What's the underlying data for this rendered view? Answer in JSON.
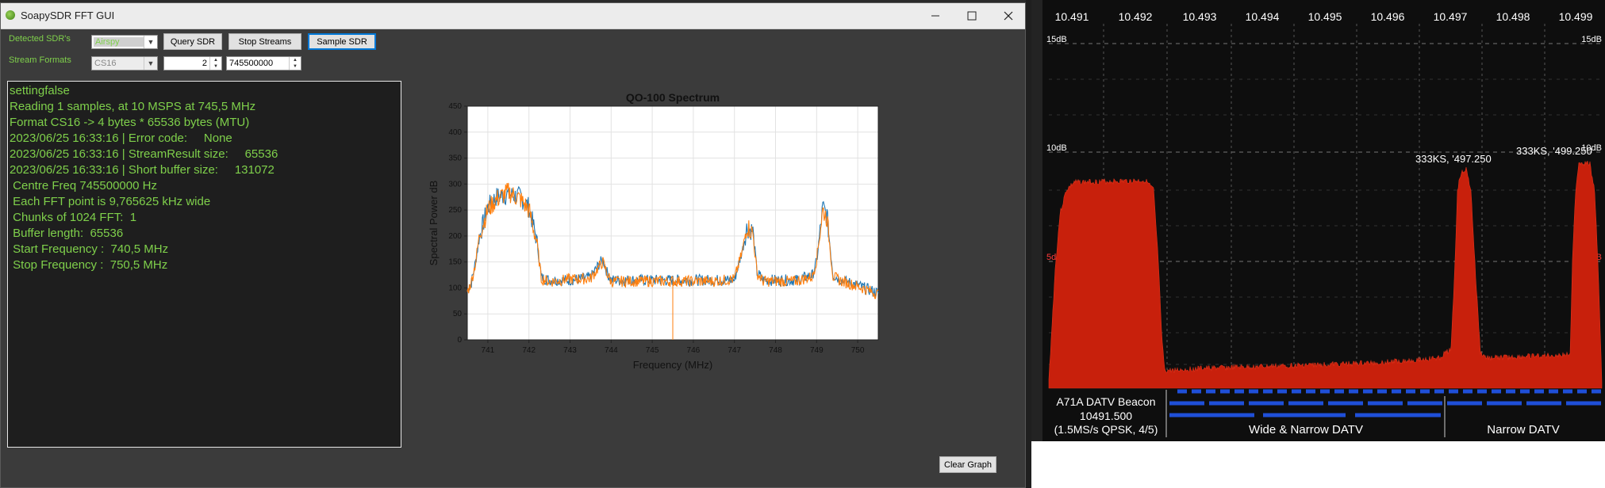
{
  "app": {
    "title": "SoapySDR FFT GUI",
    "minimize_icon": "minimize-icon",
    "maximize_icon": "maximize-icon",
    "close_icon": "close-icon"
  },
  "controls": {
    "detected_label": "Detected SDR's",
    "detected_value": "Airspy",
    "query_label": "Query SDR",
    "stop_label": "Stop Streams",
    "sample_label": "Sample SDR",
    "formats_label": "Stream Formats",
    "format_value": "CS16",
    "spin1_value": "2",
    "freq_value": "745500000"
  },
  "console": {
    "lines": [
      "settingfalse",
      "Reading 1 samples, at 10 MSPS at 745,5 MHz",
      "Format CS16 -> 4 bytes * 65536 bytes (MTU)",
      "2023/06/25 16:33:16 | Error code:     None",
      "2023/06/25 16:33:16 | StreamResult size:     65536",
      "2023/06/25 16:33:16 | Short buffer size:     131072",
      " Centre Freq 745500000 Hz",
      " Each FFT point is 9,765625 kHz wide",
      " Chunks of 1024 FFT:  1",
      " Buffer length:  65536",
      " Start Frequency :  740,5 MHz",
      " Stop Frequency :  750,5 MHz"
    ]
  },
  "clear_label": "Clear Graph",
  "colors": {
    "series_blue": "#1f77b4",
    "series_orange": "#ff7f0e",
    "spectrum_red": "#c8200c",
    "marker_blue": "#1f4fd8",
    "console_green": "#7fd04b"
  },
  "chart_data": {
    "type": "line",
    "title": "QO-100 Spectrum",
    "xlabel": "Frequency (MHz)",
    "ylabel": "Spectral Power dB",
    "xlim": [
      740.5,
      750.5
    ],
    "ylim": [
      0,
      450
    ],
    "xticks": [
      "741",
      "742",
      "743",
      "744",
      "745",
      "746",
      "747",
      "748",
      "749",
      "750"
    ],
    "yticks": [
      "0",
      "50",
      "100",
      "150",
      "200",
      "250",
      "300",
      "350",
      "400",
      "450"
    ],
    "grid": true,
    "series": [
      {
        "color": "#1f77b4",
        "x": [
          740.5,
          740.6,
          740.7,
          740.8,
          741.0,
          741.2,
          741.5,
          741.8,
          742.0,
          742.2,
          742.3,
          742.5,
          743.0,
          743.5,
          743.7,
          743.8,
          743.9,
          744.0,
          744.5,
          745.0,
          745.5,
          746.0,
          746.5,
          747.0,
          747.2,
          747.3,
          747.45,
          747.55,
          747.7,
          748.0,
          748.5,
          748.9,
          749.0,
          749.15,
          749.25,
          749.4,
          749.6,
          750.0,
          750.5
        ],
        "y": [
          95,
          110,
          150,
          200,
          255,
          275,
          280,
          275,
          255,
          190,
          120,
          115,
          115,
          120,
          145,
          155,
          130,
          115,
          115,
          115,
          115,
          115,
          115,
          115,
          175,
          215,
          210,
          130,
          115,
          115,
          115,
          125,
          150,
          255,
          240,
          125,
          115,
          105,
          90
        ]
      },
      {
        "color": "#ff7f0e",
        "x": [
          740.5,
          740.6,
          740.7,
          740.8,
          741.0,
          741.2,
          741.5,
          741.8,
          742.0,
          742.2,
          742.3,
          742.5,
          743.0,
          743.5,
          743.7,
          743.8,
          743.9,
          744.0,
          744.5,
          745.0,
          745.5,
          746.0,
          746.5,
          747.0,
          747.2,
          747.3,
          747.45,
          747.55,
          747.7,
          748.0,
          748.5,
          748.9,
          749.0,
          749.15,
          749.25,
          749.4,
          749.6,
          750.0,
          750.5
        ],
        "y": [
          92,
          112,
          148,
          205,
          250,
          270,
          285,
          270,
          250,
          185,
          118,
          112,
          117,
          118,
          140,
          150,
          128,
          112,
          113,
          113,
          113,
          113,
          113,
          117,
          172,
          220,
          205,
          128,
          113,
          113,
          113,
          122,
          155,
          250,
          235,
          122,
          113,
          103,
          88
        ]
      }
    ],
    "spike": {
      "x": 745.5,
      "y": 0
    }
  },
  "spectrum": {
    "freq_labels": [
      "10.491",
      "10.492",
      "10.493",
      "10.494",
      "10.495",
      "10.496",
      "10.497",
      "10.498",
      "10.499"
    ],
    "db_labels_left": [
      "15dB",
      "10dB",
      "5dB"
    ],
    "db_labels_right": [
      "15dB",
      "10dB",
      "5dB"
    ],
    "signal_labels": [
      "333KS, '497.250",
      "333KS, '499.250"
    ],
    "beacon_label_1": "A71A DATV Beacon",
    "beacon_label_2": "10491.500",
    "beacon_label_3": "(1.5MS/s QPSK, 4/5)",
    "wide_label": "Wide & Narrow DATV",
    "narrow_label": "Narrow DATV"
  }
}
